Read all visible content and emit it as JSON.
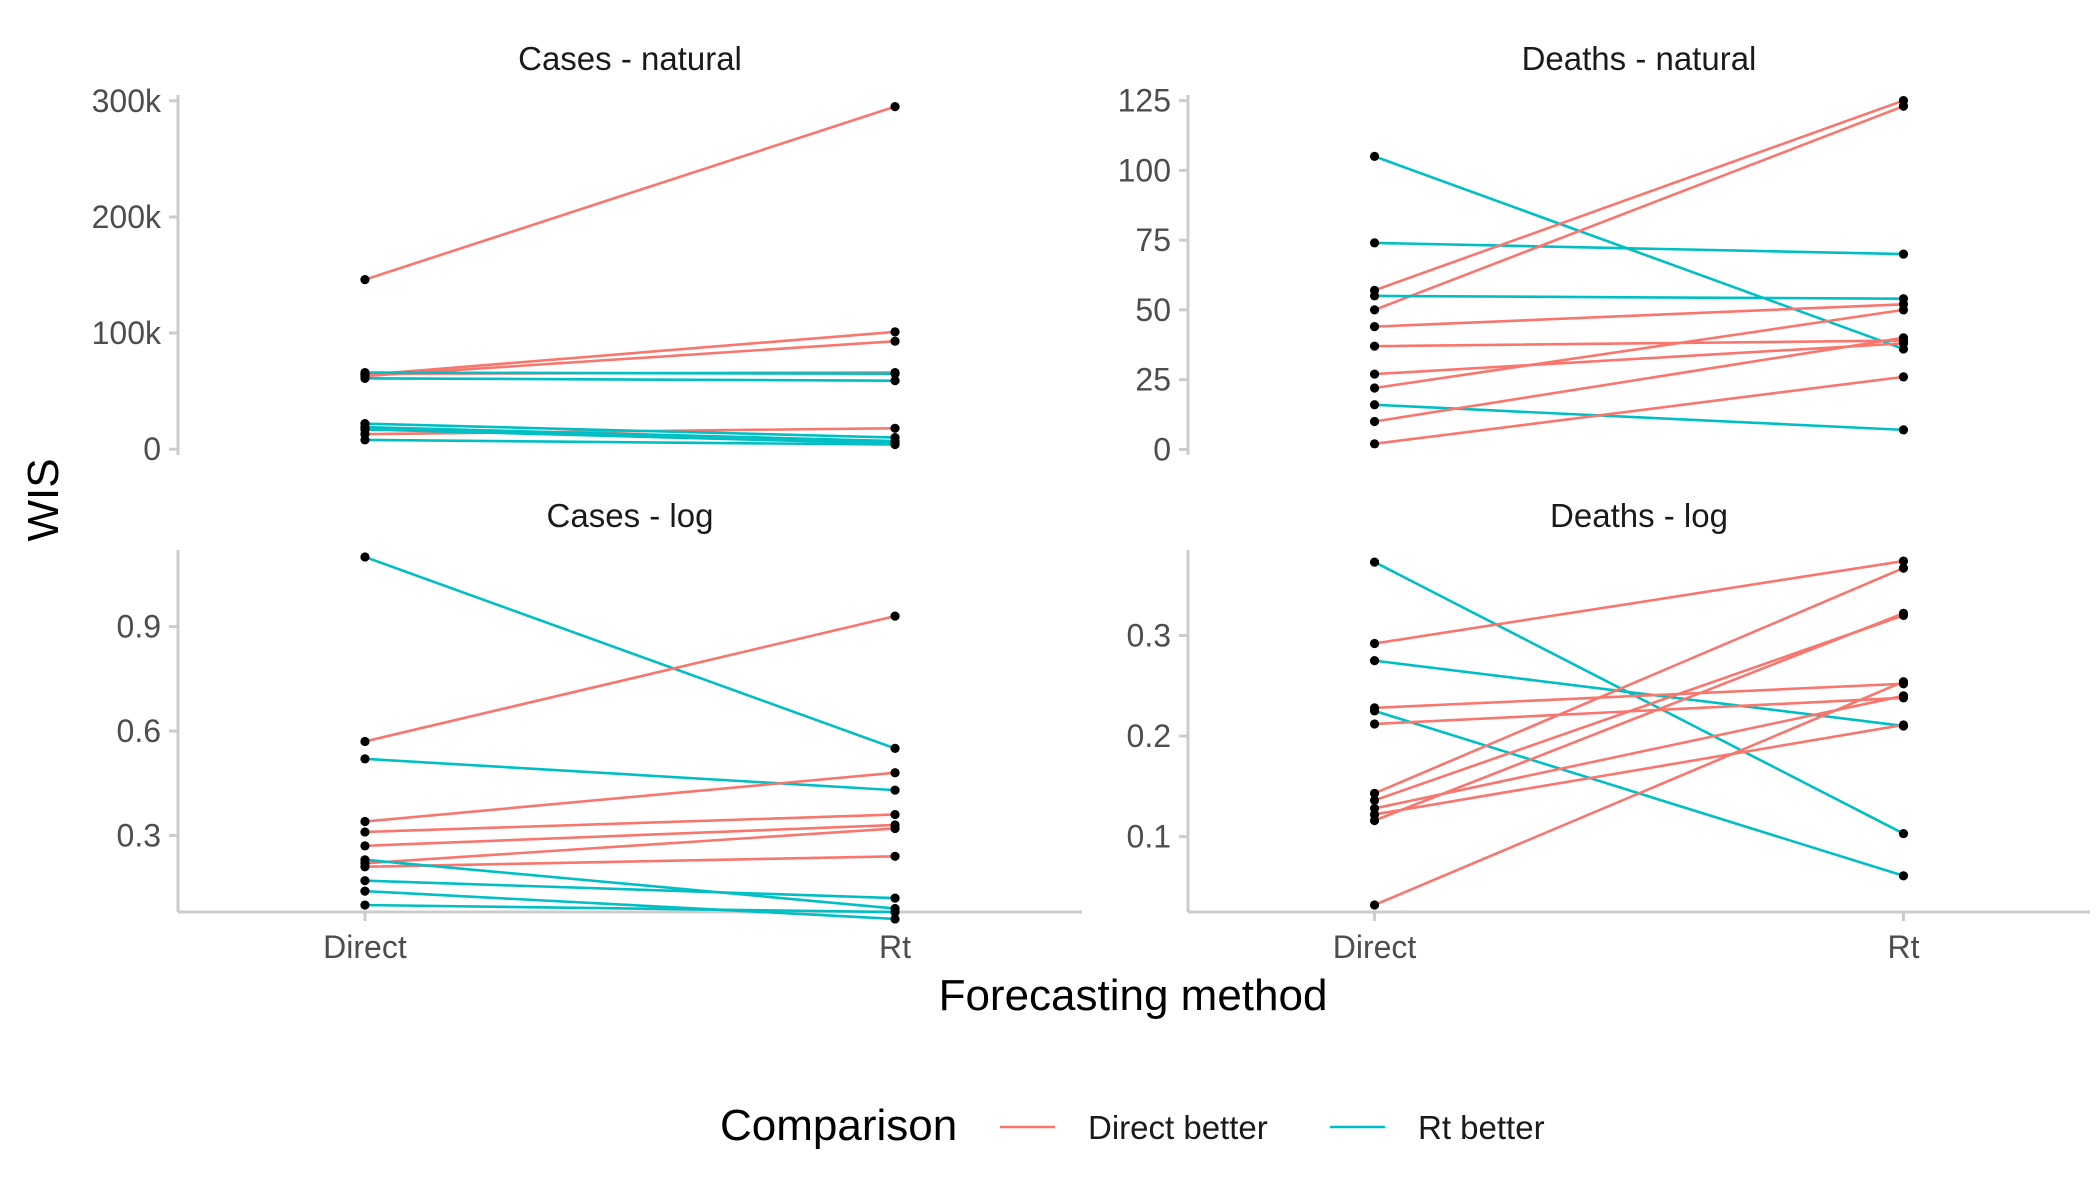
{
  "figure": {
    "y_axis_title": "WIS",
    "x_axis_title": "Forecasting method",
    "legend_title": "Comparison"
  },
  "chart_data": {
    "type": "line",
    "legend": {
      "title": "Comparison",
      "position": "bottom",
      "entries": [
        {
          "name": "Direct better",
          "color": "#F8766D"
        },
        {
          "name": "Rt better",
          "color": "#00BFC4"
        }
      ]
    },
    "xlabel": "Forecasting method",
    "ylabel": "WIS",
    "categories": [
      "Direct",
      "Rt"
    ],
    "grid": false,
    "point_color": "#000000",
    "panels": [
      {
        "title": "Cases - natural",
        "ylim": [
          -5000,
          305000
        ],
        "yticks": [
          0,
          100000,
          200000,
          300000
        ],
        "ytick_labels": [
          "0",
          "100k",
          "200k",
          "300k"
        ],
        "pairs": [
          {
            "direct": 146000,
            "rt": 295000,
            "group": "Direct better"
          },
          {
            "direct": 64000,
            "rt": 101000,
            "group": "Direct better"
          },
          {
            "direct": 63000,
            "rt": 93000,
            "group": "Direct better"
          },
          {
            "direct": 65000,
            "rt": 66000,
            "group": "Direct better"
          },
          {
            "direct": 66000,
            "rt": 65000,
            "group": "Rt better"
          },
          {
            "direct": 61000,
            "rt": 59000,
            "group": "Rt better"
          },
          {
            "direct": 13000,
            "rt": 18000,
            "group": "Direct better"
          },
          {
            "direct": 22000,
            "rt": 10000,
            "group": "Rt better"
          },
          {
            "direct": 19000,
            "rt": 7000,
            "group": "Rt better"
          },
          {
            "direct": 17000,
            "rt": 5000,
            "group": "Rt better"
          },
          {
            "direct": 8000,
            "rt": 4000,
            "group": "Rt better"
          }
        ]
      },
      {
        "title": "Deaths - natural",
        "ylim": [
          -2,
          127
        ],
        "yticks": [
          0,
          25,
          50,
          75,
          100,
          125
        ],
        "ytick_labels": [
          "0",
          "25",
          "50",
          "75",
          "100",
          "125"
        ],
        "pairs": [
          {
            "direct": 105,
            "rt": 36,
            "group": "Rt better"
          },
          {
            "direct": 74,
            "rt": 70,
            "group": "Rt better"
          },
          {
            "direct": 57,
            "rt": 125,
            "group": "Direct better"
          },
          {
            "direct": 50,
            "rt": 123,
            "group": "Direct better"
          },
          {
            "direct": 55,
            "rt": 54,
            "group": "Rt better"
          },
          {
            "direct": 44,
            "rt": 52,
            "group": "Direct better"
          },
          {
            "direct": 37,
            "rt": 39,
            "group": "Direct better"
          },
          {
            "direct": 27,
            "rt": 38,
            "group": "Direct better"
          },
          {
            "direct": 22,
            "rt": 50,
            "group": "Direct better"
          },
          {
            "direct": 16,
            "rt": 7,
            "group": "Rt better"
          },
          {
            "direct": 10,
            "rt": 40,
            "group": "Direct better"
          },
          {
            "direct": 2,
            "rt": 26,
            "group": "Direct better"
          }
        ]
      },
      {
        "title": "Cases - log",
        "ylim": [
          0.08,
          1.12
        ],
        "yticks": [
          0.3,
          0.6,
          0.9
        ],
        "ytick_labels": [
          "0.3",
          "0.6",
          "0.9"
        ],
        "pairs": [
          {
            "direct": 1.1,
            "rt": 0.55,
            "group": "Rt better"
          },
          {
            "direct": 0.57,
            "rt": 0.93,
            "group": "Direct better"
          },
          {
            "direct": 0.52,
            "rt": 0.43,
            "group": "Rt better"
          },
          {
            "direct": 0.34,
            "rt": 0.48,
            "group": "Direct better"
          },
          {
            "direct": 0.31,
            "rt": 0.36,
            "group": "Direct better"
          },
          {
            "direct": 0.27,
            "rt": 0.33,
            "group": "Direct better"
          },
          {
            "direct": 0.22,
            "rt": 0.32,
            "group": "Direct better"
          },
          {
            "direct": 0.21,
            "rt": 0.24,
            "group": "Direct better"
          },
          {
            "direct": 0.23,
            "rt": 0.09,
            "group": "Rt better"
          },
          {
            "direct": 0.17,
            "rt": 0.12,
            "group": "Rt better"
          },
          {
            "direct": 0.14,
            "rt": 0.06,
            "group": "Rt better"
          },
          {
            "direct": 0.1,
            "rt": 0.08,
            "group": "Rt better"
          }
        ]
      },
      {
        "title": "Deaths - log",
        "ylim": [
          0.025,
          0.385
        ],
        "yticks": [
          0.1,
          0.2,
          0.3
        ],
        "ytick_labels": [
          "0.1",
          "0.2",
          "0.3"
        ],
        "pairs": [
          {
            "direct": 0.373,
            "rt": 0.103,
            "group": "Rt better"
          },
          {
            "direct": 0.292,
            "rt": 0.374,
            "group": "Direct better"
          },
          {
            "direct": 0.275,
            "rt": 0.21,
            "group": "Rt better"
          },
          {
            "direct": 0.228,
            "rt": 0.252,
            "group": "Direct better"
          },
          {
            "direct": 0.225,
            "rt": 0.061,
            "group": "Rt better"
          },
          {
            "direct": 0.212,
            "rt": 0.238,
            "group": "Direct better"
          },
          {
            "direct": 0.143,
            "rt": 0.367,
            "group": "Direct better"
          },
          {
            "direct": 0.136,
            "rt": 0.32,
            "group": "Direct better"
          },
          {
            "direct": 0.128,
            "rt": 0.24,
            "group": "Direct better"
          },
          {
            "direct": 0.122,
            "rt": 0.211,
            "group": "Direct better"
          },
          {
            "direct": 0.116,
            "rt": 0.322,
            "group": "Direct better"
          },
          {
            "direct": 0.032,
            "rt": 0.254,
            "group": "Direct better"
          }
        ]
      }
    ]
  }
}
